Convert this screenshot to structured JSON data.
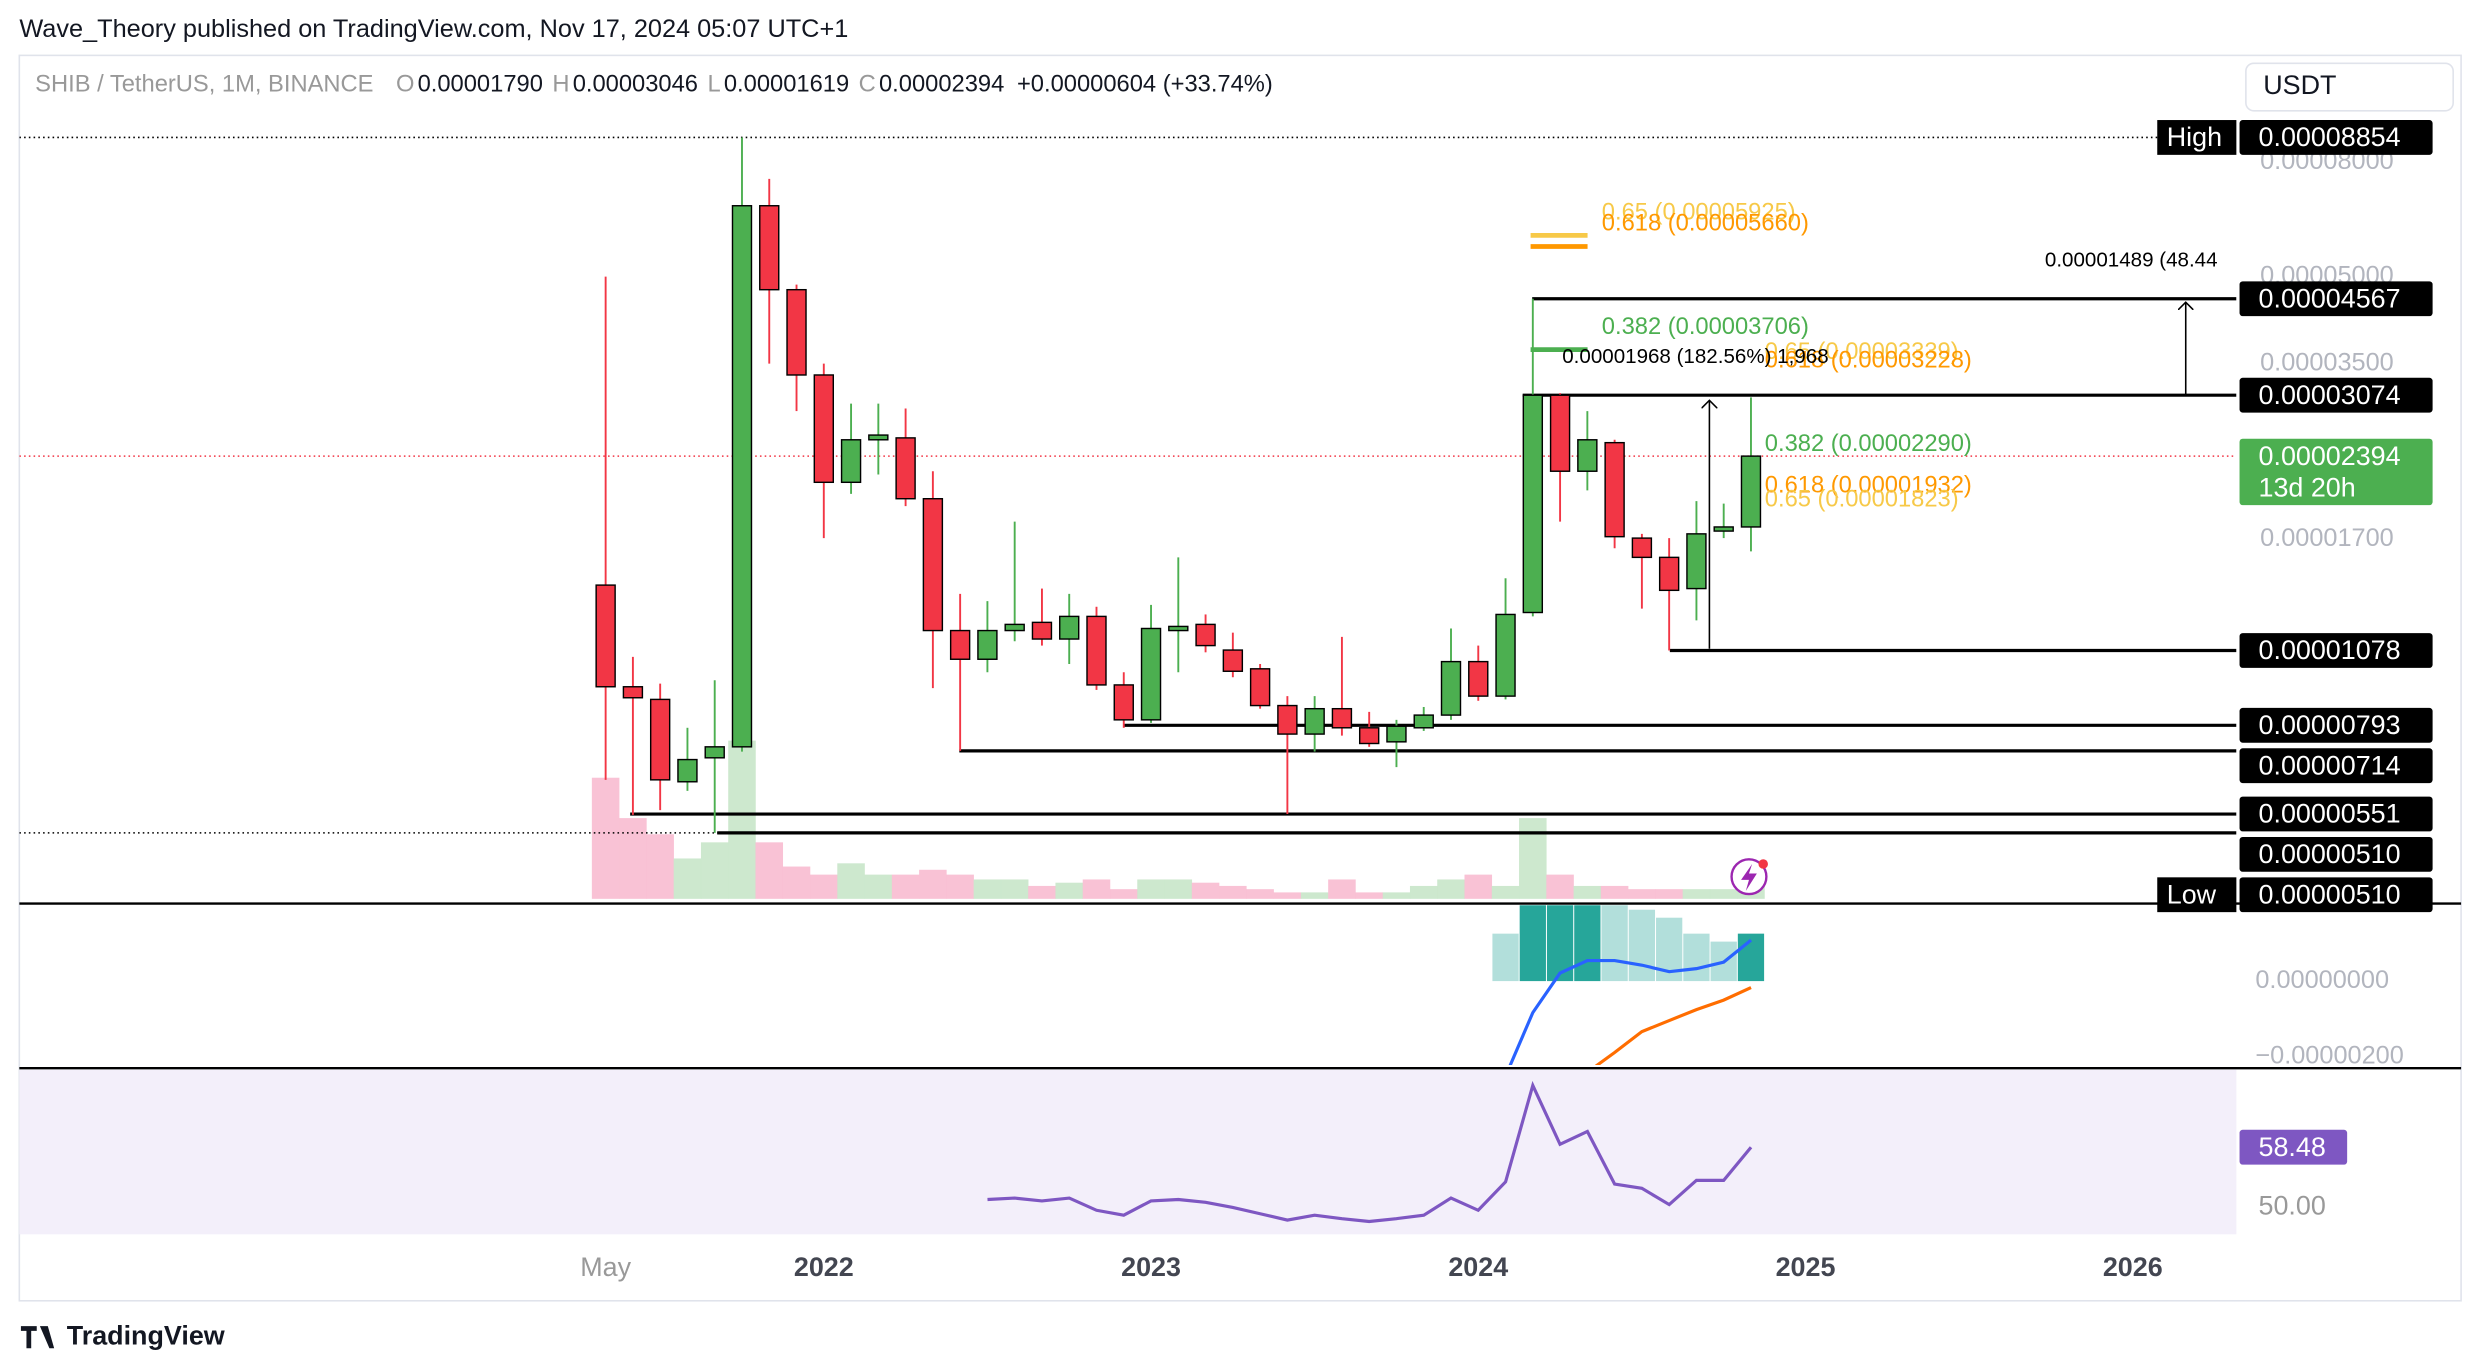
{
  "header": {
    "publisher": "Wave_Theory published on TradingView.com, Nov 17, 2024 05:07 UTC+1",
    "symbol": "SHIB / TetherUS, 1M, BINANCE",
    "ohlc": [
      {
        "key": "O",
        "value": "0.00001790"
      },
      {
        "key": "H",
        "value": "0.00003046"
      },
      {
        "key": "L",
        "value": "0.00001619"
      },
      {
        "key": "C",
        "value": "0.00002394"
      }
    ],
    "change": "+0.00000604 (+33.74%)",
    "currency": "USDT",
    "footer": "TradingView"
  },
  "chart_data": [
    {
      "type": "candlestick",
      "log": true,
      "up_color": "#4caf50",
      "down_color": "#f23645",
      "xlim": [
        -21.5,
        59.8
      ],
      "xticks": [
        {
          "value": 0,
          "label": "May"
        },
        {
          "value": 8,
          "label": "2022"
        },
        {
          "value": 20,
          "label": "2023"
        },
        {
          "value": 32,
          "label": "2024"
        },
        {
          "value": 44,
          "label": "2025"
        },
        {
          "value": 56,
          "label": "2026"
        }
      ],
      "ylim": [
        3.84e-06,
        0.000124
      ],
      "yticks": [
        {
          "value": 8e-05,
          "label": "0.00008000"
        },
        {
          "value": 5e-05,
          "label": "0.00005000"
        },
        {
          "value": 3.5e-05,
          "label": "0.00003500"
        },
        {
          "value": 1.7e-05,
          "label": "0.00001700"
        }
      ],
      "open": [
        1.41e-05,
        9.29e-06,
        8.82e-06,
        6.29e-06,
        6.94e-06,
        7.26e-06,
        6.69e-05,
        4.74e-05,
        3.34e-05,
        2.15e-05,
        2.56e-05,
        2.58e-05,
        2.01e-05,
        1.17e-05,
        1.04e-05,
        1.17e-05,
        1.21e-05,
        1.13e-05,
        1.24e-05,
        9.36e-06,
        8.11e-06,
        1.17e-05,
        1.2e-05,
        1.08e-05,
        1e-05,
        8.6e-06,
        7.65e-06,
        8.49e-06,
        7.85e-06,
        7.41e-06,
        7.85e-06,
        8.27e-06,
        1.03e-05,
        8.94e-06,
        1.26e-05,
        3.074e-05,
        2.25e-05,
        2.53e-05,
        1.71e-05,
        1.58e-05,
        1.39e-05,
        1.76e-05,
        1.79e-05
      ],
      "high": [
        5e-05,
        1.05e-05,
        9.41e-06,
        7.85e-06,
        9.54e-06,
        8.854e-05,
        7.47e-05,
        4.84e-05,
        3.5e-05,
        2.97e-05,
        2.97e-05,
        2.91e-05,
        2.25e-05,
        1.36e-05,
        1.32e-05,
        1.83e-05,
        1.39e-05,
        1.36e-05,
        1.29e-05,
        9.86e-06,
        1.3e-05,
        1.58e-05,
        1.25e-05,
        1.16e-05,
        1.02e-05,
        8.94e-06,
        8.94e-06,
        1.14e-05,
        8.38e-06,
        8.11e-06,
        8.55e-06,
        1.18e-05,
        1.1e-05,
        1.45e-05,
        4.567e-05,
        3.1e-05,
        2.88e-05,
        2.56e-05,
        1.74e-05,
        1.71e-05,
        1.99e-05,
        1.97e-05,
        3.046e-05
      ],
      "low": [
        6.34e-06,
        5.49e-06,
        5.6e-06,
        6.06e-06,
        5.1e-06,
        7.12e-06,
        3.5e-05,
        2.88e-05,
        1.71e-05,
        2.05e-05,
        2.22e-05,
        1.95e-05,
        9.24e-06,
        7.14e-06,
        9.86e-06,
        1.12e-05,
        1.1e-05,
        1.02e-05,
        9.17e-06,
        7.85e-06,
        8.01e-06,
        9.86e-06,
        1.07e-05,
        9.66e-06,
        8.49e-06,
        5.51e-06,
        7.12e-06,
        7.6e-06,
        7.26e-06,
        6.68e-06,
        7.75e-06,
        8.11e-06,
        8.77e-06,
        8.82e-06,
        1.24e-05,
        1.83e-05,
        2.08e-05,
        1.64e-05,
        1.28e-05,
        1.078e-05,
        1.22e-05,
        1.71e-05,
        1.619e-05
      ],
      "close": [
        9.29e-06,
        8.88e-06,
        6.34e-06,
        6.89e-06,
        7.26e-06,
        6.69e-05,
        4.74e-05,
        3.34e-05,
        2.15e-05,
        2.56e-05,
        2.61e-05,
        2.01e-05,
        1.17e-05,
        1.04e-05,
        1.17e-05,
        1.2e-05,
        1.13e-05,
        1.24e-05,
        9.36e-06,
        8.11e-06,
        1.18e-05,
        1.19e-05,
        1.1e-05,
        9.9e-06,
        8.6e-06,
        7.65e-06,
        8.49e-06,
        7.85e-06,
        7.36e-06,
        7.9e-06,
        8.27e-06,
        1.03e-05,
        8.94e-06,
        1.25e-05,
        3.074e-05,
        2.25e-05,
        2.56e-05,
        1.72e-05,
        1.58e-05,
        1.38e-05,
        1.74e-05,
        1.79e-05,
        2.394e-05
      ],
      "volume": [
        75,
        50,
        40,
        25,
        35,
        98,
        35,
        20,
        15,
        22,
        15,
        15,
        18,
        15,
        12,
        12,
        8,
        10,
        12,
        6,
        12,
        12,
        10,
        8,
        6,
        4,
        4,
        12,
        4,
        4,
        8,
        12,
        15,
        8,
        50,
        15,
        8,
        8,
        6,
        6,
        6,
        6,
        10
      ],
      "levels": [
        {
          "value": 8.854e-05,
          "label": "0.00008854",
          "tag": "High"
        },
        {
          "value": 4.567e-05,
          "label": "0.00004567"
        },
        {
          "value": 3.074e-05,
          "label": "0.00003074"
        },
        {
          "value": 1.078e-05,
          "label": "0.00001078"
        },
        {
          "value": 7.93e-06,
          "label": "0.00000793"
        },
        {
          "value": 7.14e-06,
          "label": "0.00000714"
        },
        {
          "value": 5.51e-06,
          "label": "0.00000551"
        },
        {
          "value": 5.1e-06,
          "label": "0.00000510"
        },
        {
          "value": 5.1e-06,
          "label": "0.00000510",
          "tag": "Low"
        }
      ],
      "countdown": "13d 20h",
      "fibs": [
        {
          "value": 5.925e-05,
          "label": "0.65 (0.00005925)",
          "color": "#f7c948"
        },
        {
          "value": 5.66e-05,
          "label": "0.618 (0.00005660)",
          "color": "#ff9800"
        },
        {
          "value": 3.706e-05,
          "label": "0.382 (0.00003706)",
          "color": "#4caf50"
        },
        {
          "value": 3.339e-05,
          "label": "0.65 (0.00003339)",
          "color": "#f7c948"
        },
        {
          "value": 3.228e-05,
          "label": "0.618 (0.00003228)",
          "color": "#ff9800"
        },
        {
          "value": 2.29e-05,
          "label": "0.382 (0.00002290)",
          "color": "#4caf50"
        },
        {
          "value": 1.932e-05,
          "label": "0.618 (0.00001932)",
          "color": "#ff9800"
        },
        {
          "value": 1.823e-05,
          "label": "0.65 (0.00001823)",
          "color": "#f7c948"
        }
      ],
      "annotations": [
        "0.00001968 (182.56%) 1,968",
        "0.00001489 (48.44"
      ]
    },
    {
      "type": "macd",
      "ylim": [
        -2.21e-06,
        2e-06
      ],
      "yticks": [
        {
          "value": 0,
          "label": "0.00000000"
        },
        {
          "value": -2e-06,
          "label": "−0.00000200"
        }
      ],
      "histogram": [
        null,
        null,
        null,
        null,
        null,
        null,
        null,
        null,
        null,
        null,
        null,
        null,
        null,
        null,
        null,
        null,
        null,
        null,
        null,
        null,
        null,
        null,
        null,
        null,
        null,
        null,
        null,
        null,
        null,
        null,
        null,
        null,
        null,
        1.25e-06,
        2e-06,
        2e-06,
        2e-06,
        2e-06,
        1.88e-06,
        1.67e-06,
        1.25e-06,
        1.04e-06,
        1.25e-06
      ],
      "histogram_colors": [
        null,
        null,
        null,
        null,
        null,
        null,
        null,
        null,
        null,
        null,
        null,
        null,
        null,
        null,
        null,
        null,
        null,
        null,
        null,
        null,
        null,
        null,
        null,
        null,
        null,
        null,
        null,
        null,
        null,
        null,
        null,
        null,
        null,
        "#b2dfdb",
        "#26a69a",
        "#26a69a",
        "#26a69a",
        "#b2dfdb",
        "#b2dfdb",
        "#b2dfdb",
        "#b2dfdb",
        "#b2dfdb",
        "#26a69a"
      ],
      "series": [
        {
          "color": "#2962ff",
          "values": [
            null,
            null,
            null,
            null,
            null,
            null,
            null,
            null,
            null,
            null,
            null,
            null,
            null,
            null,
            null,
            null,
            null,
            null,
            null,
            null,
            null,
            null,
            null,
            null,
            null,
            null,
            null,
            null,
            null,
            null,
            null,
            null,
            null,
            -2.5e-06,
            -8.3e-07,
            2.1e-07,
            5.4e-07,
            5.4e-07,
            4.2e-07,
            2.5e-07,
            3.3e-07,
            5e-07,
            1.08e-06
          ]
        },
        {
          "color": "#ff6d00",
          "values": [
            null,
            null,
            null,
            null,
            null,
            null,
            null,
            null,
            null,
            null,
            null,
            null,
            null,
            null,
            null,
            null,
            null,
            null,
            null,
            null,
            null,
            null,
            null,
            null,
            null,
            null,
            null,
            null,
            null,
            null,
            null,
            null,
            null,
            null,
            null,
            null,
            -2.4e-06,
            -1.88e-06,
            -1.33e-06,
            -1.04e-06,
            -7.5e-07,
            -5e-07,
            -1.7e-07
          ]
        }
      ]
    },
    {
      "type": "line",
      "color": "#7e57c2",
      "ylim": [
        46.2,
        69.4
      ],
      "yticks": [
        {
          "value": 50,
          "label": "50.00"
        }
      ],
      "values": [
        null,
        null,
        null,
        null,
        null,
        null,
        null,
        null,
        null,
        null,
        null,
        null,
        null,
        null,
        51.1,
        51.3,
        50.9,
        51.3,
        49.6,
        48.9,
        50.9,
        51.1,
        50.7,
        50.0,
        49.1,
        48.2,
        48.9,
        48.4,
        48.0,
        48.4,
        48.9,
        51.3,
        49.6,
        53.6,
        67.2,
        58.9,
        60.7,
        53.3,
        52.7,
        50.4,
        53.8,
        53.8,
        58.48
      ]
    }
  ]
}
